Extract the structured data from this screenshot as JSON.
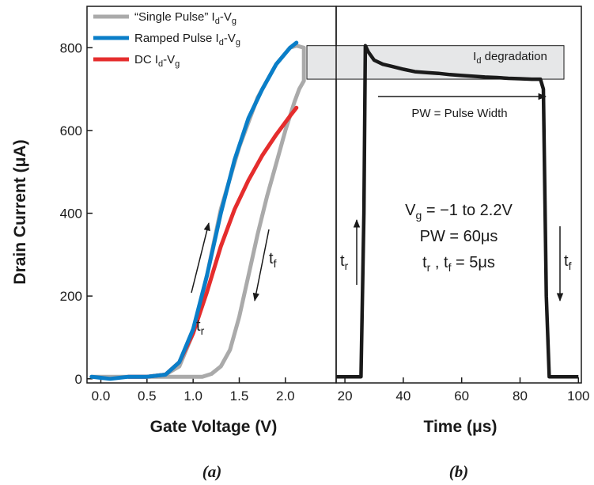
{
  "chart_data": [
    {
      "type": "line",
      "panel_label": "(a)",
      "xlabel": "Gate Voltage (V)",
      "ylabel": "Drain Current (μA)",
      "xlim": [
        -0.15,
        2.55
      ],
      "ylim": [
        -10,
        900
      ],
      "xticks": [
        "0.0",
        "0.5",
        "1.0",
        "1.5",
        "2.0"
      ],
      "yticks": [
        "0",
        "200",
        "400",
        "600",
        "800"
      ],
      "grid": false,
      "legend_position": "top-left",
      "series": [
        {
          "name": "“Single Pulse” Id-Vg",
          "color": "#aaaaaa",
          "x": [
            -0.1,
            0.2,
            0.5,
            0.7,
            0.85,
            1.0,
            1.15,
            1.3,
            1.5,
            1.7,
            1.9,
            2.05,
            2.12,
            2.2,
            2.2,
            2.2,
            2.15,
            2.1,
            2.0,
            1.9,
            1.8,
            1.7,
            1.6,
            1.5,
            1.4,
            1.3,
            1.2,
            1.1,
            1.0,
            0.9,
            0.8,
            0.6,
            0.3,
            0.0,
            -0.1
          ],
          "y": [
            5,
            5,
            5,
            10,
            30,
            110,
            250,
            410,
            560,
            680,
            760,
            800,
            805,
            800,
            760,
            720,
            700,
            670,
            600,
            520,
            440,
            350,
            250,
            150,
            70,
            30,
            12,
            5,
            5,
            5,
            5,
            5,
            5,
            5,
            5
          ]
        },
        {
          "name": "Ramped Pulse Id-Vg",
          "color": "#0a7ec8",
          "x": [
            -0.1,
            0.1,
            0.3,
            0.5,
            0.7,
            0.85,
            1.0,
            1.15,
            1.3,
            1.45,
            1.6,
            1.75,
            1.9,
            2.05,
            2.12
          ],
          "y": [
            5,
            0,
            5,
            5,
            10,
            40,
            120,
            250,
            400,
            530,
            630,
            700,
            760,
            800,
            812
          ]
        },
        {
          "name": "DC Id-Vg",
          "color": "#e52d2d",
          "x": [
            0.3,
            0.5,
            0.7,
            0.85,
            1.0,
            1.15,
            1.3,
            1.45,
            1.6,
            1.75,
            1.9,
            2.05,
            2.12
          ],
          "y": [
            5,
            5,
            10,
            40,
            110,
            210,
            320,
            410,
            480,
            540,
            590,
            635,
            655
          ]
        }
      ],
      "annotations": {
        "rise_label": "t",
        "rise_sub": "r",
        "fall_label": "t",
        "fall_sub": "f"
      },
      "legend_parts": {
        "single": [
          "“Single Pulse” I",
          "d",
          "-V",
          "g"
        ],
        "ramped": [
          "Ramped Pulse I",
          "d",
          "-V",
          "g"
        ],
        "dc": [
          "DC I",
          "d",
          "-V",
          "g"
        ]
      }
    },
    {
      "type": "line",
      "panel_label": "(b)",
      "xlabel": "Time (μs)",
      "xlim": [
        17,
        101
      ],
      "ylim": [
        -10,
        900
      ],
      "xticks": [
        "20",
        "40",
        "60",
        "80",
        "100"
      ],
      "grid": false,
      "series": [
        {
          "color": "#1a1a1a",
          "x": [
            17,
            20,
            24,
            25.5,
            26.5,
            27,
            28,
            30,
            33,
            36,
            40,
            44,
            48,
            52,
            56,
            60,
            64,
            68,
            72,
            76,
            80,
            84,
            87,
            88,
            89,
            90,
            92,
            95,
            98,
            100
          ],
          "y": [
            5,
            5,
            5,
            5,
            400,
            805,
            790,
            770,
            760,
            755,
            748,
            742,
            740,
            738,
            735,
            733,
            731,
            729,
            728,
            726,
            725,
            724,
            724,
            700,
            200,
            5,
            5,
            5,
            5,
            5
          ]
        }
      ],
      "annotations": {
        "degradation": [
          "I",
          "d",
          " degradation"
        ],
        "pulse_width": "PW = Pulse Width",
        "vg_line": [
          "V",
          "g",
          " = −1 to 2.2V"
        ],
        "pw_line": "PW = 60μs",
        "tr_tf_line": [
          "t",
          "r",
          " , t",
          "f",
          " = 5μs"
        ],
        "rise_label": "t",
        "rise_sub": "r",
        "fall_label": "t",
        "fall_sub": "f"
      }
    }
  ],
  "colors": {
    "band_fill": "#e6e7e8",
    "axis": "#1a1a1a"
  }
}
